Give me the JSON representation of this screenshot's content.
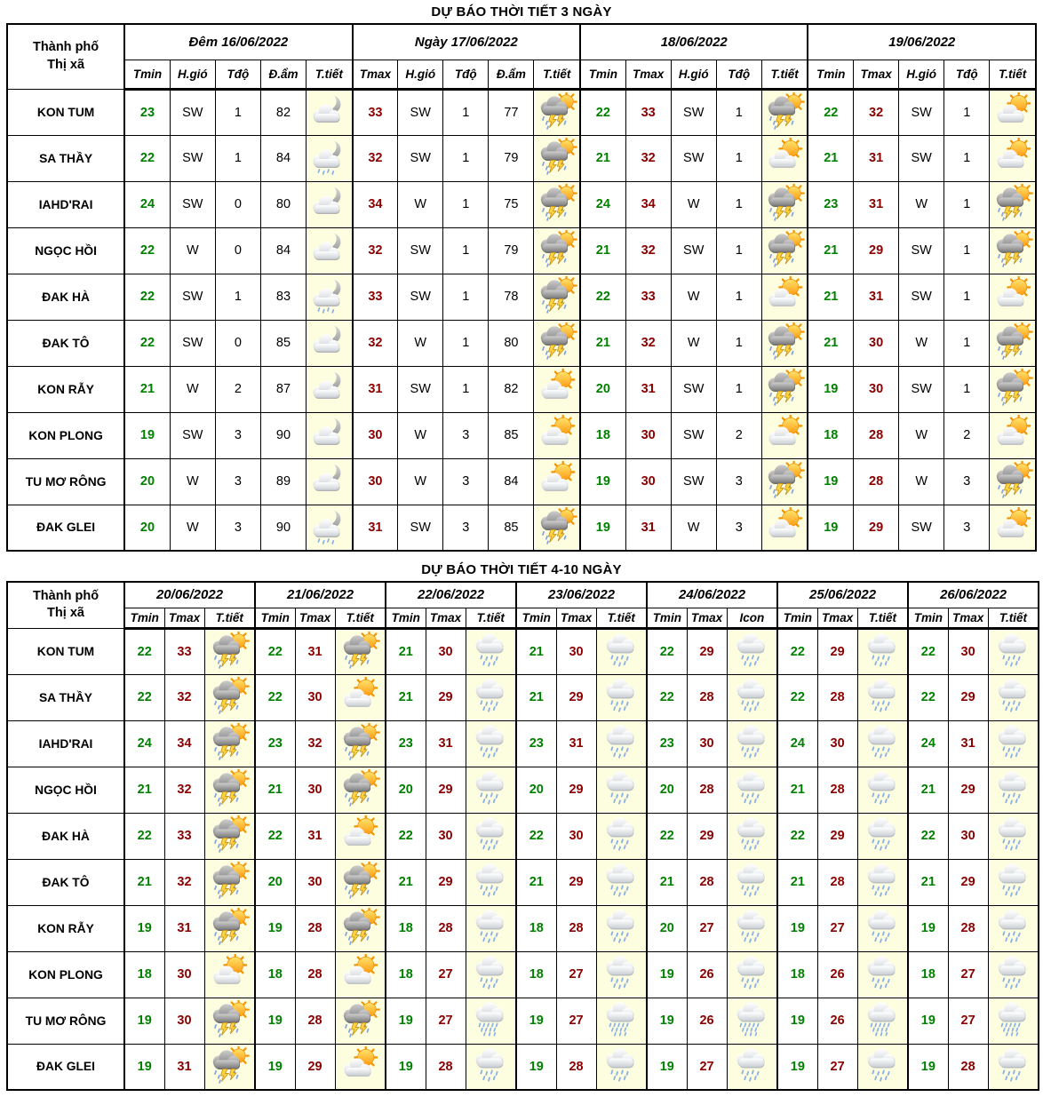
{
  "colors": {
    "tmin": "#008000",
    "tmax": "#8B0000",
    "icon_cell_bg": "#FDFDE0",
    "border": "#000000",
    "page_break_dash": "#7FA0E8"
  },
  "icon_legend": {
    "night-cloud": "crescent moon behind cloud",
    "night-rain": "crescent moon behind cloud with rain",
    "storm-sun": "sun behind dark cloud with lightning and rain",
    "sun-cloud": "sun behind cloud (partly cloudy)",
    "rain": "cloud with light rain",
    "heavy-rain": "cloud with heavy rain"
  },
  "table1": {
    "title": "DỰ BÁO THỜI TIẾT 3 NGÀY",
    "city_header": [
      "Thành phố",
      "Thị xã"
    ],
    "page_breaks_after_groups": [],
    "groups": [
      {
        "label": "Đêm 16/06/2022",
        "cols": [
          "Tmin",
          "H.gió",
          "Tđộ",
          "Đ.ẩm",
          "T.tiết"
        ]
      },
      {
        "label": "Ngày 17/06/2022",
        "cols": [
          "Tmax",
          "H.gió",
          "Tđộ",
          "Đ.ẩm",
          "T.tiết"
        ]
      },
      {
        "label": "18/06/2022",
        "cols": [
          "Tmin",
          "Tmax",
          "H.gió",
          "Tđộ",
          "T.tiết"
        ]
      },
      {
        "label": "19/06/2022",
        "cols": [
          "Tmin",
          "Tmax",
          "H.gió",
          "Tđộ",
          "T.tiết"
        ]
      }
    ],
    "rows": [
      {
        "city": "KON TUM",
        "cells": [
          [
            23,
            "SW",
            1,
            82,
            "night-cloud"
          ],
          [
            33,
            "SW",
            1,
            77,
            "storm-sun"
          ],
          [
            22,
            33,
            "SW",
            1,
            "storm-sun"
          ],
          [
            22,
            32,
            "SW",
            1,
            "sun-cloud"
          ]
        ]
      },
      {
        "city": "SA THẦY",
        "cells": [
          [
            22,
            "SW",
            1,
            84,
            "night-rain"
          ],
          [
            32,
            "SW",
            1,
            79,
            "storm-sun"
          ],
          [
            21,
            32,
            "SW",
            1,
            "sun-cloud"
          ],
          [
            21,
            31,
            "SW",
            1,
            "sun-cloud"
          ]
        ]
      },
      {
        "city": "IAHD'RAI",
        "cells": [
          [
            24,
            "SW",
            0,
            80,
            "night-cloud"
          ],
          [
            34,
            "W",
            1,
            75,
            "storm-sun"
          ],
          [
            24,
            34,
            "W",
            1,
            "storm-sun"
          ],
          [
            23,
            31,
            "W",
            1,
            "storm-sun"
          ]
        ]
      },
      {
        "city": "NGỌC HỒI",
        "cells": [
          [
            22,
            "W",
            0,
            84,
            "night-cloud"
          ],
          [
            32,
            "SW",
            1,
            79,
            "storm-sun"
          ],
          [
            21,
            32,
            "SW",
            1,
            "storm-sun"
          ],
          [
            21,
            29,
            "SW",
            1,
            "storm-sun"
          ]
        ]
      },
      {
        "city": "ĐAK HÀ",
        "cells": [
          [
            22,
            "SW",
            1,
            83,
            "night-rain"
          ],
          [
            33,
            "SW",
            1,
            78,
            "storm-sun"
          ],
          [
            22,
            33,
            "W",
            1,
            "sun-cloud"
          ],
          [
            21,
            31,
            "SW",
            1,
            "sun-cloud"
          ]
        ]
      },
      {
        "city": "ĐAK TÔ",
        "cells": [
          [
            22,
            "SW",
            0,
            85,
            "night-cloud"
          ],
          [
            32,
            "W",
            1,
            80,
            "storm-sun"
          ],
          [
            21,
            32,
            "W",
            1,
            "storm-sun"
          ],
          [
            21,
            30,
            "W",
            1,
            "storm-sun"
          ]
        ]
      },
      {
        "city": "KON RẪY",
        "cells": [
          [
            21,
            "W",
            2,
            87,
            "night-cloud"
          ],
          [
            31,
            "SW",
            1,
            82,
            "sun-cloud"
          ],
          [
            20,
            31,
            "SW",
            1,
            "storm-sun"
          ],
          [
            19,
            30,
            "SW",
            1,
            "storm-sun"
          ]
        ]
      },
      {
        "city": "KON PLONG",
        "cells": [
          [
            19,
            "SW",
            3,
            90,
            "night-cloud"
          ],
          [
            30,
            "W",
            3,
            85,
            "sun-cloud"
          ],
          [
            18,
            30,
            "SW",
            2,
            "sun-cloud"
          ],
          [
            18,
            28,
            "W",
            2,
            "sun-cloud"
          ]
        ]
      },
      {
        "city": "TU MƠ RÔNG",
        "cells": [
          [
            20,
            "W",
            3,
            89,
            "night-cloud"
          ],
          [
            30,
            "W",
            3,
            84,
            "sun-cloud"
          ],
          [
            19,
            30,
            "SW",
            3,
            "storm-sun"
          ],
          [
            19,
            28,
            "W",
            3,
            "storm-sun"
          ]
        ]
      },
      {
        "city": "ĐAK GLEI",
        "cells": [
          [
            20,
            "W",
            3,
            90,
            "night-rain"
          ],
          [
            31,
            "SW",
            3,
            85,
            "storm-sun"
          ],
          [
            19,
            31,
            "W",
            3,
            "sun-cloud"
          ],
          [
            19,
            29,
            "SW",
            3,
            "sun-cloud"
          ]
        ]
      }
    ]
  },
  "table2": {
    "title": "DỰ BÁO THỜI TIẾT 4-10 NGÀY",
    "city_header": [
      "Thành phố",
      "Thị xã"
    ],
    "page_breaks_after_groups": [
      1,
      4
    ],
    "groups": [
      {
        "label": "20/06/2022",
        "cols": [
          "Tmin",
          "Tmax",
          "T.tiết"
        ]
      },
      {
        "label": "21/06/2022",
        "cols": [
          "Tmin",
          "Tmax",
          "T.tiết"
        ]
      },
      {
        "label": "22/06/2022",
        "cols": [
          "Tmin",
          "Tmax",
          "T.tiết"
        ]
      },
      {
        "label": "23/06/2022",
        "cols": [
          "Tmin",
          "Tmax",
          "T.tiết"
        ]
      },
      {
        "label": "24/06/2022",
        "cols": [
          "Tmin",
          "Tmax",
          "Icon"
        ]
      },
      {
        "label": "25/06/2022",
        "cols": [
          "Tmin",
          "Tmax",
          "T.tiết"
        ]
      },
      {
        "label": "26/06/2022",
        "cols": [
          "Tmin",
          "Tmax",
          "T.tiết"
        ]
      }
    ],
    "rows": [
      {
        "city": "KON TUM",
        "cells": [
          [
            22,
            33,
            "storm-sun"
          ],
          [
            22,
            31,
            "storm-sun"
          ],
          [
            21,
            30,
            "rain"
          ],
          [
            21,
            30,
            "rain"
          ],
          [
            22,
            29,
            "rain"
          ],
          [
            22,
            29,
            "rain"
          ],
          [
            22,
            30,
            "rain"
          ]
        ]
      },
      {
        "city": "SA THẦY",
        "cells": [
          [
            22,
            32,
            "storm-sun"
          ],
          [
            22,
            30,
            "sun-cloud"
          ],
          [
            21,
            29,
            "rain"
          ],
          [
            21,
            29,
            "rain"
          ],
          [
            22,
            28,
            "rain"
          ],
          [
            22,
            28,
            "rain"
          ],
          [
            22,
            29,
            "rain"
          ]
        ]
      },
      {
        "city": "IAHD'RAI",
        "cells": [
          [
            24,
            34,
            "storm-sun"
          ],
          [
            23,
            32,
            "storm-sun"
          ],
          [
            23,
            31,
            "rain"
          ],
          [
            23,
            31,
            "rain"
          ],
          [
            23,
            30,
            "rain"
          ],
          [
            24,
            30,
            "rain"
          ],
          [
            24,
            31,
            "rain"
          ]
        ]
      },
      {
        "city": "NGỌC HỒI",
        "cells": [
          [
            21,
            32,
            "storm-sun"
          ],
          [
            21,
            30,
            "storm-sun"
          ],
          [
            20,
            29,
            "rain"
          ],
          [
            20,
            29,
            "rain"
          ],
          [
            20,
            28,
            "rain"
          ],
          [
            21,
            28,
            "rain"
          ],
          [
            21,
            29,
            "rain"
          ]
        ]
      },
      {
        "city": "ĐAK HÀ",
        "cells": [
          [
            22,
            33,
            "storm-sun"
          ],
          [
            22,
            31,
            "sun-cloud"
          ],
          [
            22,
            30,
            "rain"
          ],
          [
            22,
            30,
            "rain"
          ],
          [
            22,
            29,
            "rain"
          ],
          [
            22,
            29,
            "rain"
          ],
          [
            22,
            30,
            "rain"
          ]
        ]
      },
      {
        "city": "ĐAK TÔ",
        "cells": [
          [
            21,
            32,
            "storm-sun"
          ],
          [
            20,
            30,
            "storm-sun"
          ],
          [
            21,
            29,
            "rain"
          ],
          [
            21,
            29,
            "rain"
          ],
          [
            21,
            28,
            "rain"
          ],
          [
            21,
            28,
            "rain"
          ],
          [
            21,
            29,
            "rain"
          ]
        ]
      },
      {
        "city": "KON RẪY",
        "cells": [
          [
            19,
            31,
            "storm-sun"
          ],
          [
            19,
            28,
            "storm-sun"
          ],
          [
            18,
            28,
            "rain"
          ],
          [
            18,
            28,
            "rain"
          ],
          [
            20,
            27,
            "rain"
          ],
          [
            19,
            27,
            "rain"
          ],
          [
            19,
            28,
            "rain"
          ]
        ]
      },
      {
        "city": "KON PLONG",
        "cells": [
          [
            18,
            30,
            "sun-cloud"
          ],
          [
            18,
            28,
            "sun-cloud"
          ],
          [
            18,
            27,
            "rain"
          ],
          [
            18,
            27,
            "rain"
          ],
          [
            19,
            26,
            "rain"
          ],
          [
            18,
            26,
            "rain"
          ],
          [
            18,
            27,
            "rain"
          ]
        ]
      },
      {
        "city": "TU MƠ RÔNG",
        "cells": [
          [
            19,
            30,
            "storm-sun"
          ],
          [
            19,
            28,
            "storm-sun"
          ],
          [
            19,
            27,
            "heavy-rain"
          ],
          [
            19,
            27,
            "heavy-rain"
          ],
          [
            19,
            26,
            "heavy-rain"
          ],
          [
            19,
            26,
            "heavy-rain"
          ],
          [
            19,
            27,
            "heavy-rain"
          ]
        ]
      },
      {
        "city": "ĐAK GLEI",
        "cells": [
          [
            19,
            31,
            "storm-sun"
          ],
          [
            19,
            29,
            "sun-cloud"
          ],
          [
            19,
            28,
            "rain"
          ],
          [
            19,
            28,
            "rain"
          ],
          [
            19,
            27,
            "rain"
          ],
          [
            19,
            27,
            "rain"
          ],
          [
            19,
            28,
            "rain"
          ]
        ]
      }
    ]
  }
}
